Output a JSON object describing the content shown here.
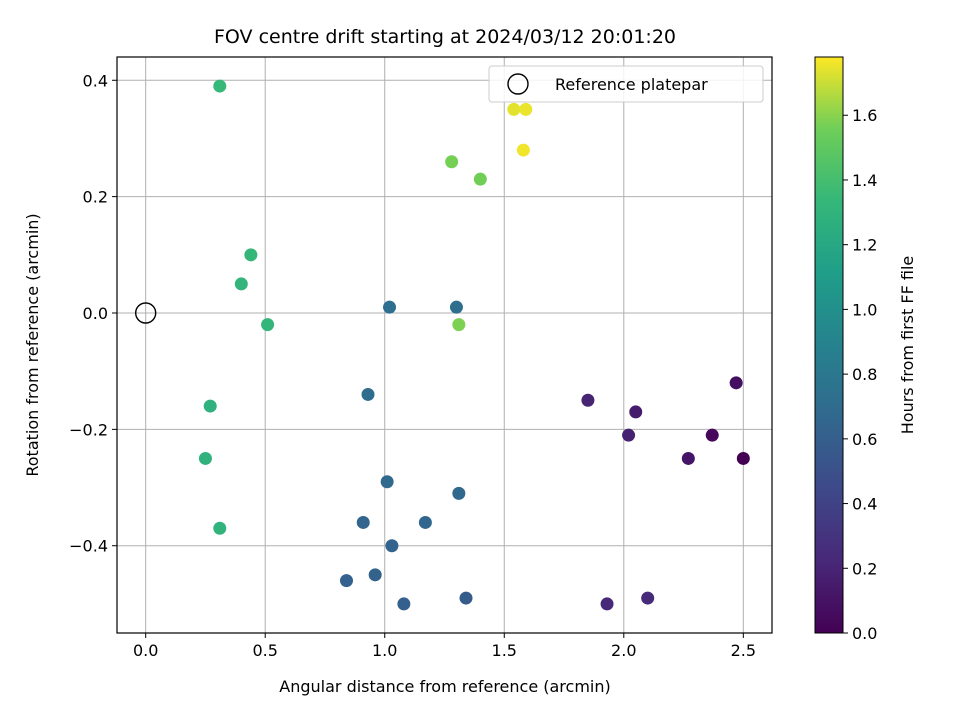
{
  "chart_data": {
    "type": "scatter",
    "title": "FOV centre drift starting at 2024/03/12 20:01:20",
    "xlabel": "Angular distance from reference (arcmin)",
    "ylabel": "Rotation from reference (arcmin)",
    "xlim": [
      -0.12,
      2.62
    ],
    "ylim": [
      -0.55,
      0.44
    ],
    "xticks": [
      0.0,
      0.5,
      1.0,
      1.5,
      2.0,
      2.5
    ],
    "xtick_labels": [
      "0.0",
      "0.5",
      "1.0",
      "1.5",
      "2.0",
      "2.5"
    ],
    "yticks": [
      -0.4,
      -0.2,
      0.0,
      0.2,
      0.4
    ],
    "ytick_labels": [
      "−0.4",
      "−0.2",
      "0.0",
      "0.2",
      "0.4"
    ],
    "grid": true,
    "legend": {
      "position": "top-right",
      "entries": [
        "Reference platepar"
      ]
    },
    "reference_point": {
      "x": 0.0,
      "y": 0.0
    },
    "colorbar": {
      "label": "Hours from first FF file",
      "colormap": "viridis",
      "range": [
        0.0,
        1.78
      ],
      "ticks": [
        0.0,
        0.2,
        0.4,
        0.6,
        0.8,
        1.0,
        1.2,
        1.4,
        1.6
      ],
      "tick_labels": [
        "0.0",
        "0.2",
        "0.4",
        "0.6",
        "0.8",
        "1.0",
        "1.2",
        "1.4",
        "1.6"
      ]
    },
    "points": [
      {
        "x": 2.5,
        "y": -0.25,
        "hours": 0.0
      },
      {
        "x": 2.37,
        "y": -0.21,
        "hours": 0.04
      },
      {
        "x": 2.47,
        "y": -0.12,
        "hours": 0.08
      },
      {
        "x": 2.27,
        "y": -0.25,
        "hours": 0.11
      },
      {
        "x": 2.05,
        "y": -0.17,
        "hours": 0.15
      },
      {
        "x": 2.02,
        "y": -0.21,
        "hours": 0.18
      },
      {
        "x": 1.85,
        "y": -0.15,
        "hours": 0.2
      },
      {
        "x": 1.93,
        "y": -0.5,
        "hours": 0.22
      },
      {
        "x": 2.1,
        "y": -0.49,
        "hours": 0.24
      },
      {
        "x": 1.34,
        "y": -0.49,
        "hours": 0.58
      },
      {
        "x": 1.08,
        "y": -0.5,
        "hours": 0.6
      },
      {
        "x": 0.84,
        "y": -0.46,
        "hours": 0.62
      },
      {
        "x": 0.96,
        "y": -0.45,
        "hours": 0.63
      },
      {
        "x": 1.03,
        "y": -0.4,
        "hours": 0.64
      },
      {
        "x": 0.91,
        "y": -0.36,
        "hours": 0.65
      },
      {
        "x": 1.17,
        "y": -0.36,
        "hours": 0.66
      },
      {
        "x": 1.31,
        "y": -0.31,
        "hours": 0.67
      },
      {
        "x": 1.01,
        "y": -0.29,
        "hours": 0.68
      },
      {
        "x": 0.93,
        "y": -0.14,
        "hours": 0.7
      },
      {
        "x": 1.02,
        "y": 0.01,
        "hours": 0.72
      },
      {
        "x": 1.3,
        "y": 0.01,
        "hours": 0.73
      },
      {
        "x": 0.31,
        "y": -0.37,
        "hours": 1.3
      },
      {
        "x": 0.25,
        "y": -0.25,
        "hours": 1.29
      },
      {
        "x": 0.27,
        "y": -0.16,
        "hours": 1.28
      },
      {
        "x": 0.51,
        "y": -0.02,
        "hours": 1.32
      },
      {
        "x": 0.4,
        "y": 0.05,
        "hours": 1.31
      },
      {
        "x": 0.44,
        "y": 0.1,
        "hours": 1.33
      },
      {
        "x": 0.31,
        "y": 0.39,
        "hours": 1.34
      },
      {
        "x": 1.31,
        "y": -0.02,
        "hours": 1.58
      },
      {
        "x": 1.28,
        "y": 0.26,
        "hours": 1.57
      },
      {
        "x": 1.4,
        "y": 0.23,
        "hours": 1.56
      },
      {
        "x": 1.58,
        "y": 0.28,
        "hours": 1.76
      },
      {
        "x": 1.54,
        "y": 0.35,
        "hours": 1.74
      },
      {
        "x": 1.59,
        "y": 0.35,
        "hours": 1.75
      }
    ]
  }
}
